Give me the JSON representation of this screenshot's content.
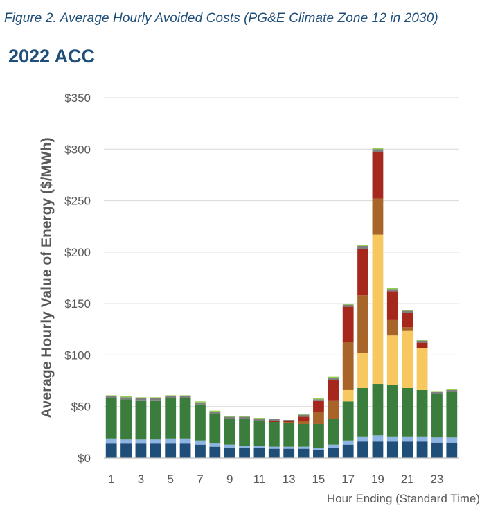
{
  "figure_caption": "Figure 2. Average Hourly Avoided Costs (PG&E Climate Zone 12 in 2030)",
  "section_title": "2022 ACC",
  "chart_data": {
    "type": "bar",
    "stacked": true,
    "title": "",
    "ylabel": "Average Hourly Value of Energy ($/MWh)",
    "xlabel": "Hour Ending (Standard Time)",
    "ylim": [
      0,
      350
    ],
    "y_ticks": [
      0,
      50,
      100,
      150,
      200,
      250,
      300,
      350
    ],
    "y_tick_labels": [
      "$0",
      "$50",
      "$100",
      "$150",
      "$200",
      "$250",
      "$300",
      "$350"
    ],
    "x_tick_labels": [
      "1",
      "",
      "3",
      "",
      "5",
      "",
      "7",
      "",
      "9",
      "",
      "11",
      "",
      "13",
      "",
      "15",
      "",
      "17",
      "",
      "19",
      "",
      "21",
      "",
      "23",
      ""
    ],
    "categories": [
      "1",
      "2",
      "3",
      "4",
      "5",
      "6",
      "7",
      "8",
      "9",
      "10",
      "11",
      "12",
      "13",
      "14",
      "15",
      "16",
      "17",
      "18",
      "19",
      "20",
      "21",
      "22",
      "23",
      "24"
    ],
    "grid": true,
    "legend": "none",
    "series": [
      {
        "color": "#1f4e79",
        "values": [
          14,
          14,
          14,
          14,
          14,
          14,
          13,
          11,
          10,
          10,
          10,
          9,
          9,
          9,
          8,
          10,
          13,
          16,
          16,
          16,
          16,
          16,
          15,
          15
        ]
      },
      {
        "color": "#8eb4e3",
        "values": [
          5,
          4,
          4,
          4,
          5,
          5,
          4,
          3,
          3,
          2,
          2,
          2,
          2,
          2,
          2,
          3,
          4,
          5,
          6,
          5,
          5,
          5,
          5,
          5
        ]
      },
      {
        "color": "#3a7d3c",
        "values": [
          39,
          39,
          38,
          38,
          39,
          39,
          35,
          29,
          25,
          26,
          24,
          24,
          23,
          22,
          23,
          25,
          38,
          47,
          50,
          50,
          47,
          45,
          42,
          44
        ]
      },
      {
        "color": "#f6c85f",
        "values": [
          0,
          0,
          0,
          0,
          0,
          0,
          0,
          0,
          0,
          0,
          0,
          0,
          0,
          0,
          0,
          0,
          11,
          34,
          145,
          48,
          56,
          41,
          0,
          0
        ]
      },
      {
        "color": "#a9642a",
        "values": [
          0,
          0,
          0,
          0,
          0,
          0,
          0,
          0,
          0,
          0,
          0,
          0,
          1,
          3,
          12,
          18,
          47,
          56,
          35,
          15,
          3,
          0,
          0,
          0
        ]
      },
      {
        "color": "#a6281c",
        "values": [
          0,
          0,
          0,
          0,
          0,
          0,
          0,
          0,
          0,
          0,
          0,
          1,
          1,
          4,
          11,
          20,
          34,
          45,
          45,
          28,
          14,
          5,
          0,
          0
        ]
      },
      {
        "color": "#7f7f7f",
        "values": [
          2,
          2,
          2,
          2,
          2,
          2,
          2,
          2,
          2,
          2,
          2,
          2,
          1,
          2,
          1,
          2,
          2,
          3,
          3,
          2,
          2,
          2,
          2,
          2
        ]
      },
      {
        "color": "#92d050",
        "values": [
          1,
          1,
          1,
          1,
          1,
          1,
          1,
          1,
          1,
          1,
          1,
          0,
          0,
          1,
          1,
          1,
          1,
          1,
          1,
          1,
          1,
          1,
          1,
          1
        ]
      }
    ]
  }
}
